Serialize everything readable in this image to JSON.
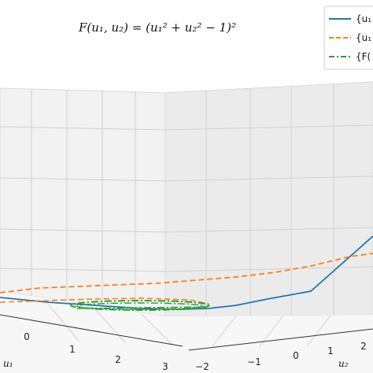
{
  "chart_data": {
    "type": "line",
    "projection": "3d",
    "title": "F(u₁, u₂) = (u₁² + u₂² − 1)²",
    "xlabel": "u₁",
    "ylabel": "u₂",
    "x_ticks": [
      "0",
      "1",
      "2",
      "3"
    ],
    "y_ticks": [
      "−2",
      "−1",
      "0",
      "1",
      "2"
    ],
    "grid": true,
    "legend_position": "top-right",
    "series": [
      {
        "name": "{u₁",
        "style": "solid",
        "color": "#1f77b4"
      },
      {
        "name": "{u₁",
        "style": "dashed",
        "color": "#ff7f0e"
      },
      {
        "name": "{F(",
        "style": "dashdot",
        "color": "#2ca02c"
      }
    ]
  }
}
